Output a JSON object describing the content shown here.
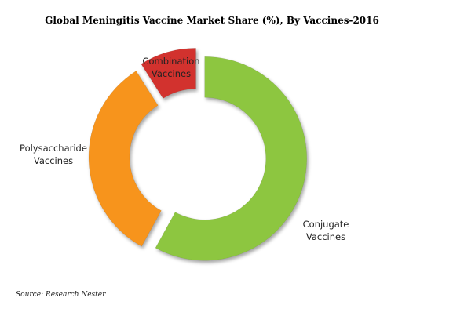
{
  "chart_data": {
    "type": "donut",
    "title": "Global Meningitis Vaccine Market Share (%), By Vaccines-2016",
    "categories": [
      "Conjugate Vaccines",
      "Polysaccharide Vaccines",
      "Combination Vaccines"
    ],
    "series": [
      {
        "values": [
          58,
          33,
          9
        ],
        "colors": [
          "#8dc63f",
          "#f7941d",
          "#d2332d"
        ]
      }
    ],
    "source": "Source: Research Nester"
  }
}
